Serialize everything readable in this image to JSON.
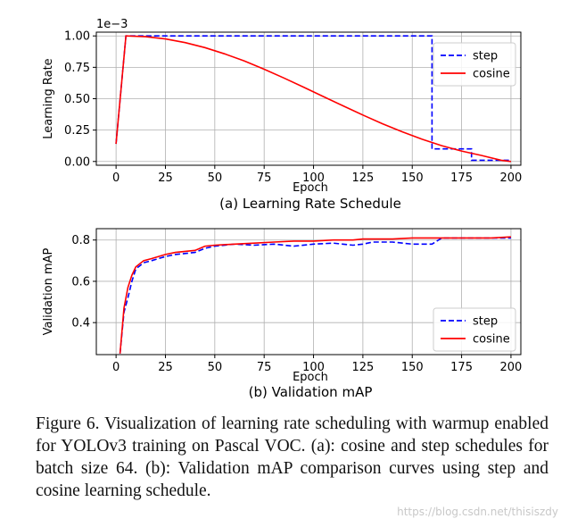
{
  "chart_data": [
    {
      "type": "line",
      "subtitle": "(a) Learning Rate Schedule",
      "xlabel": "Epoch",
      "ylabel": "Learning Rate",
      "y_scale_note": "1e−3",
      "xlim": [
        -10,
        205
      ],
      "ylim": [
        -0.03,
        1.03
      ],
      "x_ticks": [
        0,
        25,
        50,
        75,
        100,
        125,
        150,
        175,
        200
      ],
      "y_ticks": [
        0.0,
        0.25,
        0.5,
        0.75,
        1.0
      ],
      "y_tick_labels": [
        "0.00",
        "0.25",
        "0.50",
        "0.75",
        "1.00"
      ],
      "grid": true,
      "legend": "top-right",
      "series": [
        {
          "name": "step",
          "color": "#0000ff",
          "style": "dashed",
          "x": [
            0,
            5,
            160,
            160,
            180,
            180,
            200
          ],
          "y": [
            0.14,
            1.0,
            1.0,
            0.1,
            0.1,
            0.01,
            0.01
          ]
        },
        {
          "name": "cosine",
          "color": "#ff0000",
          "style": "solid",
          "x": [
            0,
            5,
            15,
            25,
            35,
            45,
            55,
            65,
            75,
            85,
            95,
            105,
            115,
            125,
            135,
            145,
            155,
            165,
            175,
            185,
            195,
            200
          ],
          "y": [
            0.14,
            1.0,
            0.994,
            0.976,
            0.947,
            0.907,
            0.857,
            0.8,
            0.735,
            0.665,
            0.592,
            0.517,
            0.443,
            0.37,
            0.3,
            0.236,
            0.177,
            0.126,
            0.083,
            0.048,
            0.01,
            0.0
          ]
        }
      ]
    },
    {
      "type": "line",
      "subtitle": "(b) Validation mAP",
      "xlabel": "Epoch",
      "ylabel": "Validation mAP",
      "xlim": [
        -10,
        205
      ],
      "ylim": [
        0.245,
        0.855
      ],
      "x_ticks": [
        0,
        25,
        50,
        75,
        100,
        125,
        150,
        175,
        200
      ],
      "y_ticks": [
        0.4,
        0.6,
        0.8
      ],
      "y_tick_labels": [
        "0.4",
        "0.6",
        "0.8"
      ],
      "grid": true,
      "legend": "lower-right",
      "series": [
        {
          "name": "step",
          "color": "#0000ff",
          "style": "dashed",
          "x": [
            2,
            4,
            6,
            8,
            10,
            14,
            18,
            25,
            30,
            40,
            45,
            50,
            60,
            70,
            80,
            90,
            100,
            110,
            120,
            125,
            130,
            140,
            150,
            155,
            160,
            165,
            170,
            180,
            190,
            200
          ],
          "y": [
            0.25,
            0.45,
            0.52,
            0.6,
            0.66,
            0.69,
            0.7,
            0.72,
            0.73,
            0.74,
            0.76,
            0.77,
            0.78,
            0.775,
            0.78,
            0.77,
            0.78,
            0.785,
            0.775,
            0.78,
            0.79,
            0.79,
            0.78,
            0.78,
            0.78,
            0.81,
            0.81,
            0.81,
            0.81,
            0.81
          ]
        },
        {
          "name": "cosine",
          "color": "#ff0000",
          "style": "solid",
          "x": [
            2,
            4,
            6,
            8,
            10,
            14,
            18,
            25,
            30,
            40,
            45,
            50,
            60,
            70,
            80,
            90,
            100,
            110,
            120,
            125,
            130,
            140,
            150,
            155,
            160,
            165,
            170,
            180,
            190,
            200
          ],
          "y": [
            0.25,
            0.47,
            0.57,
            0.63,
            0.67,
            0.7,
            0.71,
            0.73,
            0.74,
            0.75,
            0.77,
            0.775,
            0.78,
            0.785,
            0.79,
            0.795,
            0.795,
            0.8,
            0.8,
            0.805,
            0.805,
            0.805,
            0.81,
            0.81,
            0.81,
            0.81,
            0.81,
            0.81,
            0.81,
            0.815
          ]
        }
      ]
    }
  ],
  "caption": "Figure 6. Visualization of learning rate scheduling with warmup enabled for YOLOv3 training on Pascal VOC. (a): cosine and step schedules for batch size 64. (b): Validation mAP comparison curves using step and cosine learning schedule.",
  "watermark": "https://blog.csdn.net/thisiszdy"
}
